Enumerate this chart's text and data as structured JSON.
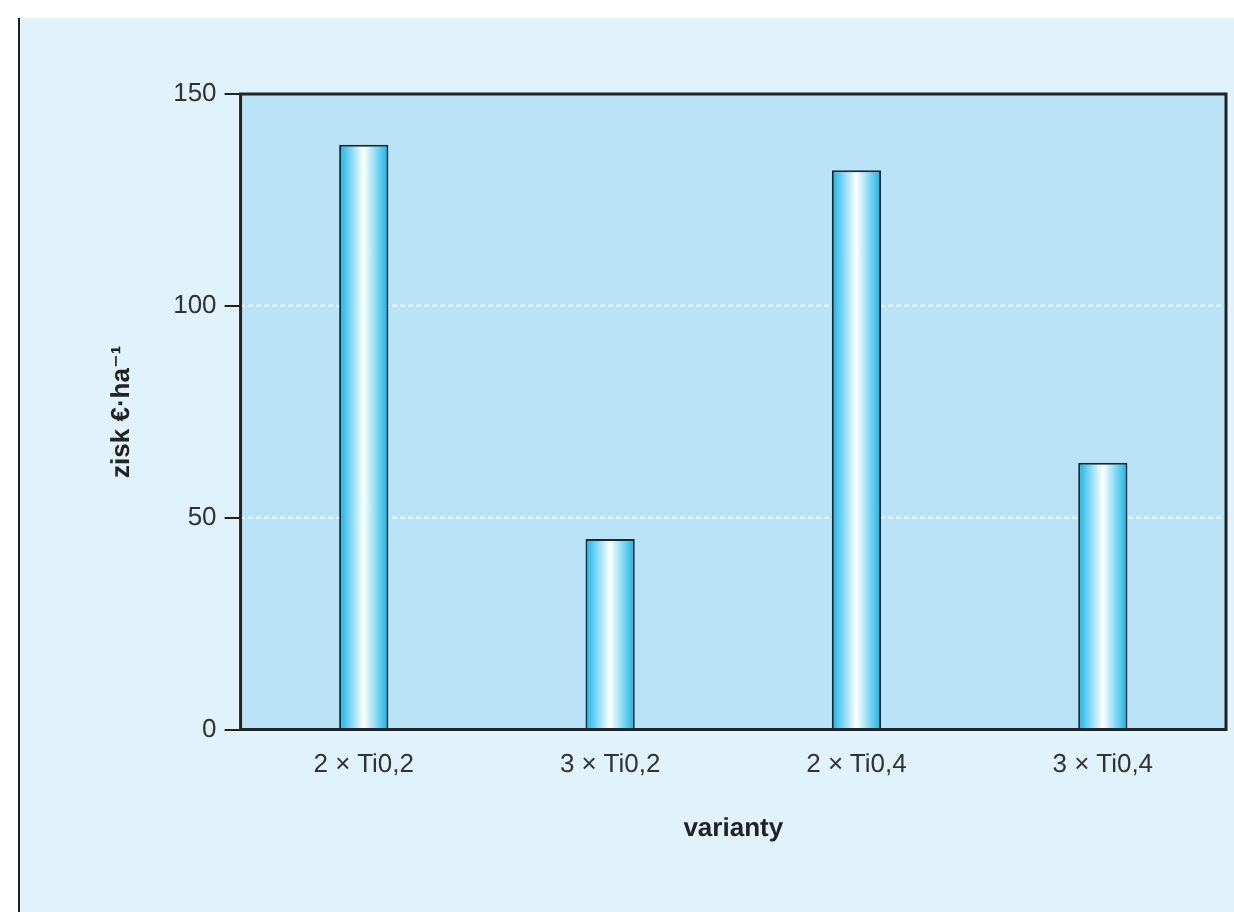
{
  "chart_data": {
    "type": "bar",
    "xlabel": "varianty",
    "ylabel": "zisk €·ha⁻¹",
    "categories": [
      "2 × Ti0,2",
      "3 × Ti0,2",
      "2 × Ti0,4",
      "3 × Ti0,4"
    ],
    "values": [
      138,
      45,
      132,
      63
    ],
    "color": "#12b4e8",
    "ylim": [
      0,
      150
    ],
    "yticks": [
      0,
      50,
      100,
      150
    ],
    "grid": "y",
    "legend": false
  }
}
